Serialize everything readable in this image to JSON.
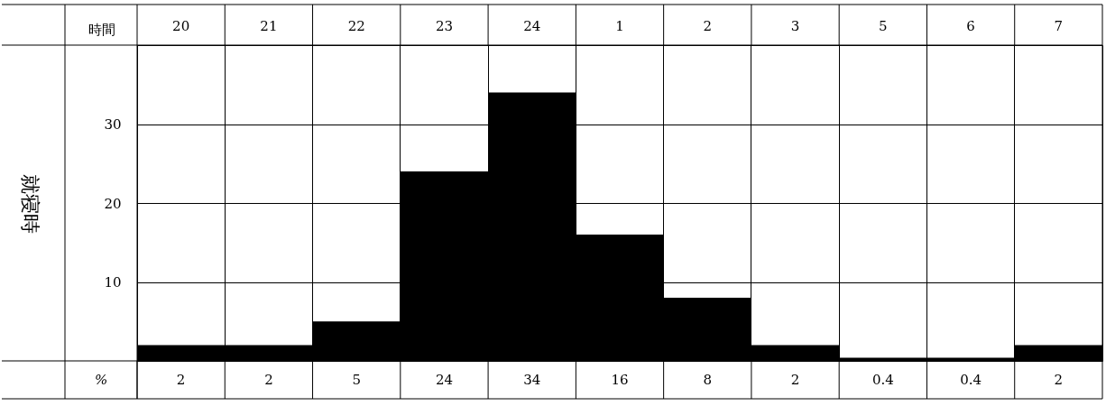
{
  "chart_data": {
    "type": "bar",
    "xlabel": "時間",
    "ylabel": "就寝時",
    "categories": [
      "20",
      "21",
      "22",
      "23",
      "24",
      "1",
      "2",
      "3",
      "5",
      "6",
      "7"
    ],
    "values": [
      2,
      2,
      5,
      24,
      34,
      16,
      8,
      2,
      0.4,
      0.4,
      2
    ],
    "color": "#000000",
    "ylim": [
      0,
      40
    ],
    "yticks": [
      10,
      20,
      30
    ],
    "grid": true,
    "data_labels": true,
    "annotations": [
      "%"
    ]
  }
}
